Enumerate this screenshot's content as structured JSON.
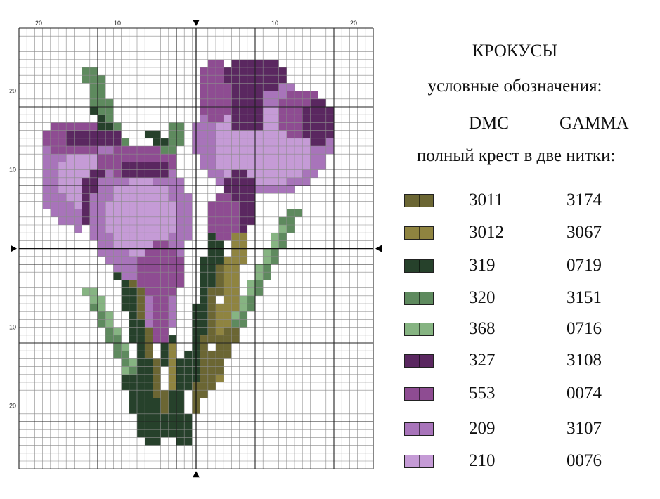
{
  "title": "КРОКУСЫ",
  "subtitle": "условные обозначения:",
  "column_headers": {
    "dmc": "DMC",
    "gamma": "GAMMA"
  },
  "stitch_note": "полный крест в две нитки:",
  "axis_labels": {
    "top": [
      "20",
      "10",
      "10",
      "20"
    ],
    "left": [
      "20",
      "10",
      "10",
      "20"
    ]
  },
  "legend": [
    {
      "dmc": "3011",
      "gamma": "3174",
      "color": "#6b6633"
    },
    {
      "dmc": "3012",
      "gamma": "3067",
      "color": "#8f8440"
    },
    {
      "dmc": "319",
      "gamma": "0719",
      "color": "#26412b"
    },
    {
      "dmc": "320",
      "gamma": "3151",
      "color": "#5e8a5e"
    },
    {
      "dmc": "368",
      "gamma": "0716",
      "color": "#86b482"
    },
    {
      "dmc": "327",
      "gamma": "3108",
      "color": "#5a2760"
    },
    {
      "dmc": "553",
      "gamma": "0074",
      "color": "#8e4c92"
    },
    {
      "dmc": "209",
      "gamma": "3107",
      "color": "#a874ba"
    },
    {
      "dmc": "210",
      "gamma": "0076",
      "color": "#c59bd6"
    }
  ]
}
